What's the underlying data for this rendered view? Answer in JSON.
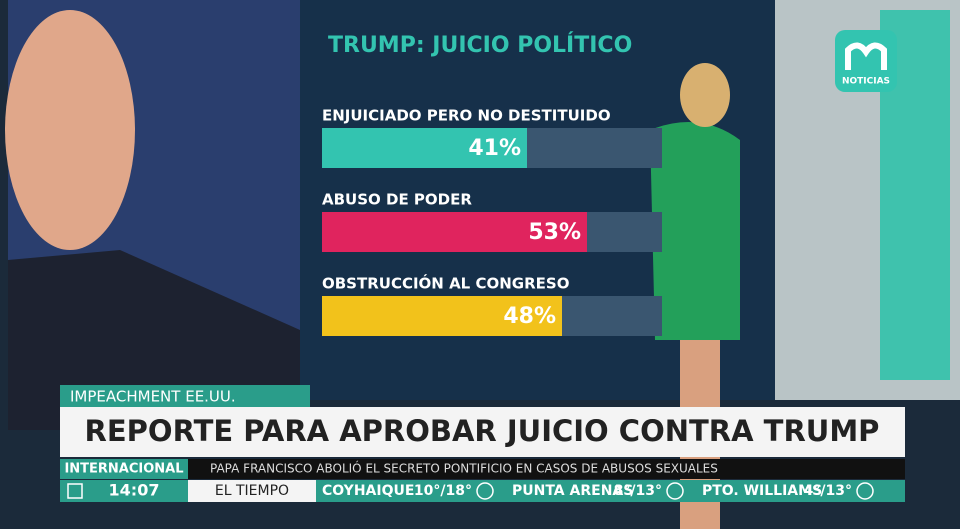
{
  "wall": {
    "title": "TRUMP: JUICIO POLÍTICO",
    "bars": {
      "categories": [
        "ENJUICIADO PERO NO DESTITUIDO",
        "ABUSO DE PODER",
        "OBSTRUCCIÓN AL CONGRESO"
      ],
      "values": [
        41,
        53,
        48
      ],
      "value_labels": [
        "41%",
        "53%",
        "48%"
      ],
      "colors": [
        "#33c4b0",
        "#e0245e",
        "#f2c21b"
      ]
    }
  },
  "logo": {
    "text": "NOTICIAS"
  },
  "lower_third": {
    "tag": "IMPEACHMENT EE.UU.",
    "headline": "REPORTE PARA APROBAR JUICIO CONTRA TRUMP",
    "section": "INTERNACIONAL",
    "ticker": "PAPA FRANCISCO ABOLIÓ EL SECRETO PONTIFICIO EN CASOS DE ABUSOS SEXUALES",
    "time": "14:07",
    "weather_label": "EL TIEMPO",
    "weather": [
      {
        "city": "COYHAIQUE",
        "temp": "10°/18°"
      },
      {
        "city": "PUNTA ARENAS",
        "temp": "8°/13°"
      },
      {
        "city": "PTO. WILLIAMS",
        "temp": "4°/13°"
      }
    ]
  }
}
